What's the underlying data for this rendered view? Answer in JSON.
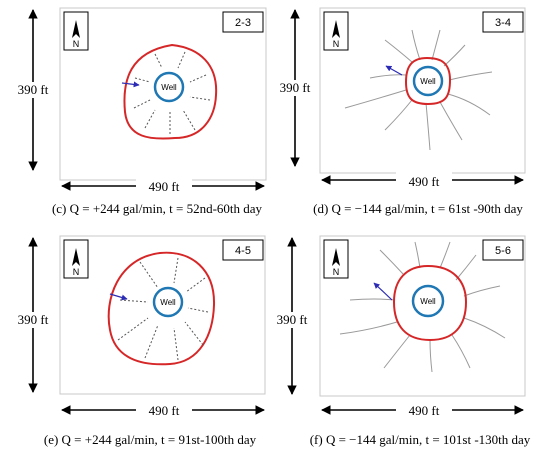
{
  "panels": [
    {
      "id": "c",
      "tag": "2-3",
      "caption": "(c) Q = +244 gal/min, t = 52nd-60th day",
      "height_label": "390 ft",
      "width_label": "490 ft",
      "well_label": "Well",
      "north_label": "N",
      "rays": "dotted-inward"
    },
    {
      "id": "d",
      "tag": "3-4",
      "caption": "(d) Q = −144 gal/min, t = 61st -90th day",
      "height_label": "390 ft",
      "width_label": "490 ft",
      "well_label": "Well",
      "north_label": "N",
      "rays": "solid-outward"
    },
    {
      "id": "e",
      "tag": "4-5",
      "caption": "(e) Q = +244 gal/min, t = 91st-100th day",
      "height_label": "390 ft",
      "width_label": "490 ft",
      "well_label": "Well",
      "north_label": "N",
      "rays": "dotted-inward"
    },
    {
      "id": "f",
      "tag": "5-6",
      "caption": "(f) Q = −144 gal/min, t = 101st -130th day",
      "height_label": "390 ft",
      "width_label": "490 ft",
      "well_label": "Well",
      "north_label": "N",
      "rays": "solid-outward"
    }
  ],
  "colors": {
    "boundary": "#d62728",
    "well": "#1f77b4",
    "arrow": "#2b2bb5",
    "ray": "#9a9a9a",
    "frame": "#c8c8c8",
    "dim": "#000000"
  }
}
